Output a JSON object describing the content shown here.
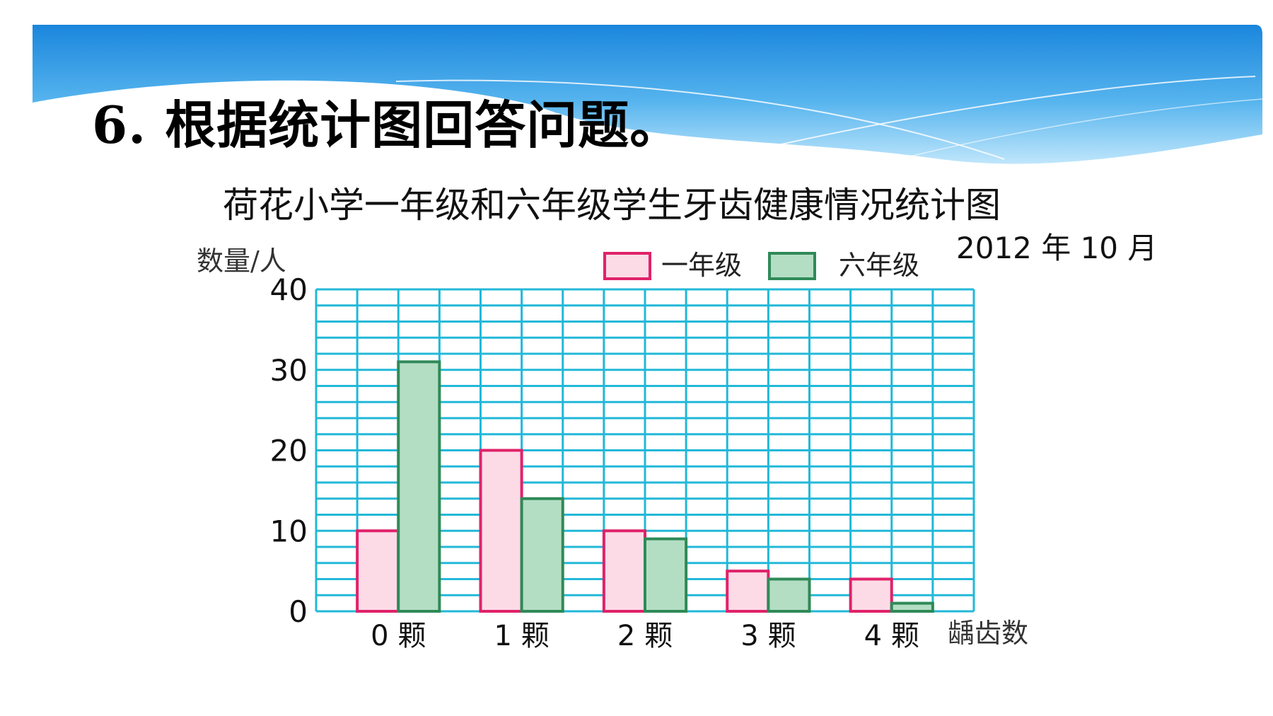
{
  "slide": {
    "question_title": "6. 根据统计图回答问题。"
  },
  "colors": {
    "grid": "#22b8d8",
    "grade1_fill": "#fcdbe7",
    "grade1_stroke": "#e0226a",
    "grade6_fill": "#b4dec4",
    "grade6_stroke": "#2f8a57",
    "banner_dark": "#1a86dc",
    "banner_light": "#bfe6fb"
  },
  "chart_data": {
    "type": "bar",
    "title": "荷花小学一年级和六年级学生牙齿健康情况统计图",
    "date": "2012 年 10 月",
    "ylabel": "数量/人",
    "xlabel": "龋齿数",
    "ylim": [
      0,
      40
    ],
    "yticks": [
      "0",
      "10",
      "20",
      "30",
      "40"
    ],
    "minor_step": 2,
    "grid": true,
    "legend_position": "top-right",
    "categories": [
      "0 颗",
      "1 颗",
      "2 颗",
      "3 颗",
      "4 颗"
    ],
    "series": [
      {
        "name": "一年级",
        "values": [
          10,
          20,
          10,
          5,
          4
        ]
      },
      {
        "name": "六年级",
        "values": [
          31,
          14,
          9,
          4,
          1
        ]
      }
    ]
  }
}
